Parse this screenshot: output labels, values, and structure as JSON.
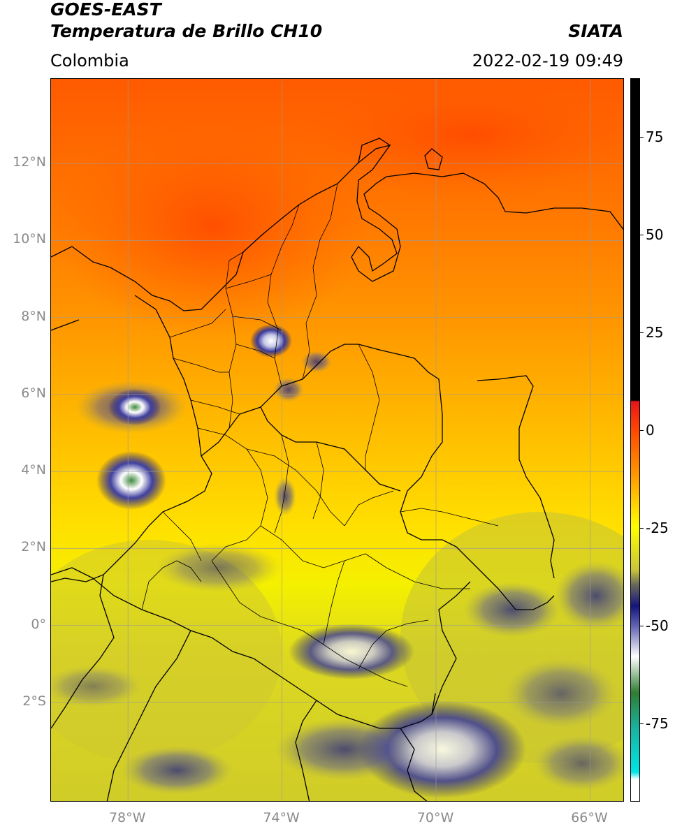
{
  "header": {
    "satellite": "GOES-EAST",
    "product": "Temperatura de Brillo CH10",
    "region": "Colombia",
    "brand": "SIATA",
    "datetime": "2022-02-19 09:49"
  },
  "axes": {
    "lat_labels": [
      {
        "label": "12°N",
        "value": 12
      },
      {
        "label": "10°N",
        "value": 10
      },
      {
        "label": "8°N",
        "value": 8
      },
      {
        "label": "6°N",
        "value": 6
      },
      {
        "label": "4°N",
        "value": 4
      },
      {
        "label": "2°N",
        "value": 2
      },
      {
        "label": "0°",
        "value": 0
      },
      {
        "label": "2°S",
        "value": -2
      }
    ],
    "lon_labels": [
      {
        "label": "78°W",
        "value": -78
      },
      {
        "label": "74°W",
        "value": -74
      },
      {
        "label": "70°W",
        "value": -70
      },
      {
        "label": "66°W",
        "value": -66
      }
    ],
    "lat_range": [
      -4.6,
      14.2
    ],
    "lon_range": [
      -80,
      -65.1
    ],
    "grid": true
  },
  "colorbar": {
    "range": [
      -95,
      90
    ],
    "ticks": [
      {
        "label": "75",
        "value": 75
      },
      {
        "label": "50",
        "value": 50
      },
      {
        "label": "25",
        "value": 25
      },
      {
        "label": "0",
        "value": 0
      },
      {
        "label": "-25",
        "value": -25
      },
      {
        "label": "-50",
        "value": -50
      },
      {
        "label": "-75",
        "value": -75
      }
    ],
    "colors": {
      "black": "#000000",
      "red": "#e8141a",
      "orange": "#ff8a00",
      "yellow": "#ffff00",
      "olive": "#c9c53a",
      "navy": "#14147e",
      "white": "#ffffff",
      "green": "#2f7d32",
      "teal": "#1ab3a0",
      "cyan": "#00e5e5"
    }
  }
}
